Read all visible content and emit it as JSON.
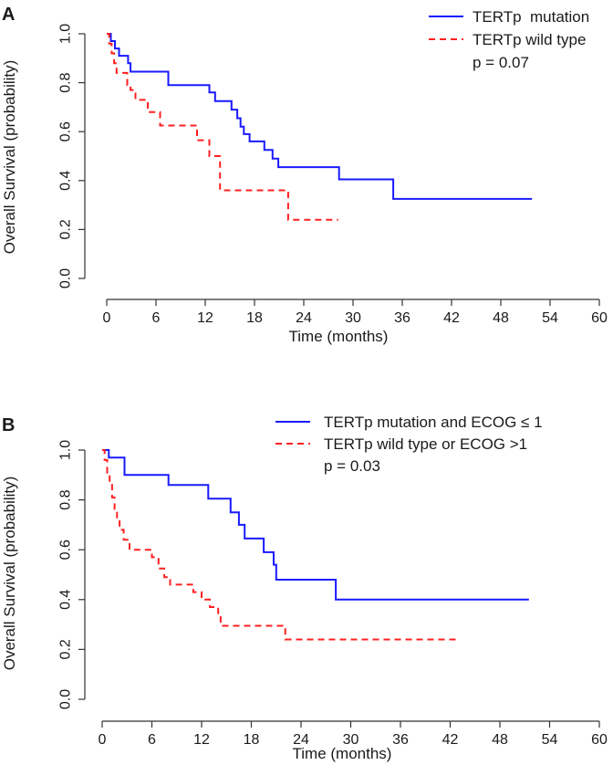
{
  "chart_data": [
    {
      "type": "line",
      "panel_label": "A",
      "xlabel": "Time (months)",
      "ylabel": "Overall Survival (probability)",
      "xlim": [
        0,
        60
      ],
      "ylim": [
        0,
        1
      ],
      "x_ticks": [
        0,
        6,
        12,
        18,
        24,
        30,
        36,
        42,
        48,
        54,
        60
      ],
      "y_ticks": [
        "0.0",
        "0.2",
        "0.4",
        "0.6",
        "0.8",
        "1.0"
      ],
      "legend_position": "top-right",
      "annotation": "p = 0.07",
      "series": [
        {
          "name": "TERTp  mutation",
          "color": "#1a1aff",
          "style": "solid",
          "points": [
            [
              0,
              1.0
            ],
            [
              0.5,
              0.97
            ],
            [
              1.0,
              0.94
            ],
            [
              1.5,
              0.91
            ],
            [
              2.6,
              0.88
            ],
            [
              2.9,
              0.845
            ],
            [
              7.5,
              0.79
            ],
            [
              12.5,
              0.76
            ],
            [
              13.2,
              0.725
            ],
            [
              15.2,
              0.69
            ],
            [
              15.9,
              0.655
            ],
            [
              16.3,
              0.62
            ],
            [
              16.7,
              0.59
            ],
            [
              17.4,
              0.56
            ],
            [
              19.2,
              0.525
            ],
            [
              20.2,
              0.49
            ],
            [
              20.9,
              0.455
            ],
            [
              28.3,
              0.405
            ],
            [
              34.9,
              0.325
            ],
            [
              51.8,
              0.325
            ]
          ]
        },
        {
          "name": "TERTp wild type",
          "color": "#ff2020",
          "style": "dashed",
          "points": [
            [
              0,
              1.0
            ],
            [
              0.3,
              0.96
            ],
            [
              0.6,
              0.92
            ],
            [
              0.9,
              0.88
            ],
            [
              1.2,
              0.84
            ],
            [
              2.5,
              0.79
            ],
            [
              2.9,
              0.77
            ],
            [
              3.5,
              0.73
            ],
            [
              5.0,
              0.68
            ],
            [
              6.5,
              0.625
            ],
            [
              11.0,
              0.565
            ],
            [
              12.5,
              0.5
            ],
            [
              13.8,
              0.36
            ],
            [
              22.1,
              0.24
            ],
            [
              28.2,
              0.24
            ]
          ]
        }
      ]
    },
    {
      "type": "line",
      "panel_label": "B",
      "xlabel": "Time (months)",
      "ylabel": "Overall Survival (probability)",
      "xlim": [
        0,
        60
      ],
      "ylim": [
        0,
        1
      ],
      "x_ticks": [
        0,
        6,
        12,
        18,
        24,
        30,
        36,
        42,
        48,
        54,
        60
      ],
      "y_ticks": [
        "0.0",
        "0.2",
        "0.4",
        "0.6",
        "0.8",
        "1.0"
      ],
      "legend_position": "top-right",
      "annotation": "p = 0.03",
      "series": [
        {
          "name": "TERTp mutation and ECOG ≤ 1",
          "color": "#1a1aff",
          "style": "solid",
          "points": [
            [
              0,
              1.0
            ],
            [
              0.8,
              0.97
            ],
            [
              2.7,
              0.9
            ],
            [
              8.0,
              0.86
            ],
            [
              12.8,
              0.805
            ],
            [
              15.5,
              0.75
            ],
            [
              16.5,
              0.7
            ],
            [
              17.2,
              0.645
            ],
            [
              19.5,
              0.59
            ],
            [
              20.7,
              0.54
            ],
            [
              21.0,
              0.48
            ],
            [
              28.2,
              0.4
            ],
            [
              51.5,
              0.4
            ]
          ]
        },
        {
          "name": "TERTp wild type or ECOG >1",
          "color": "#ff2020",
          "style": "dashed",
          "points": [
            [
              0,
              1.0
            ],
            [
              0.3,
              0.96
            ],
            [
              0.6,
              0.91
            ],
            [
              0.9,
              0.86
            ],
            [
              1.2,
              0.81
            ],
            [
              1.5,
              0.76
            ],
            [
              1.8,
              0.72
            ],
            [
              2.1,
              0.68
            ],
            [
              2.6,
              0.64
            ],
            [
              3.3,
              0.6
            ],
            [
              6.0,
              0.57
            ],
            [
              6.8,
              0.525
            ],
            [
              7.5,
              0.49
            ],
            [
              8.2,
              0.46
            ],
            [
              11.0,
              0.43
            ],
            [
              12.0,
              0.4
            ],
            [
              13.0,
              0.37
            ],
            [
              14.0,
              0.33
            ],
            [
              14.3,
              0.295
            ],
            [
              22.1,
              0.24
            ],
            [
              42.9,
              0.24
            ]
          ]
        }
      ]
    }
  ]
}
